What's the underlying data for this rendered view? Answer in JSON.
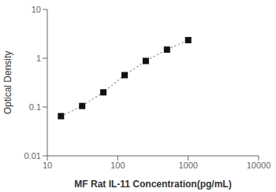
{
  "chart_data": {
    "type": "line",
    "log": true,
    "grid": false,
    "xlabel": "MF Rat IL-11 Concentration(pg/mL)",
    "ylabel": "Optical Density",
    "x": [
      15.625,
      31.25,
      62.5,
      125,
      250,
      500,
      1000
    ],
    "series": [
      {
        "type": "line",
        "color": "#999999",
        "line_style": "dotted",
        "values": [
          0.065,
          0.105,
          0.2,
          0.45,
          0.88,
          1.5,
          2.35
        ]
      },
      {
        "type": "scatter",
        "color": "#111111",
        "marker": "square",
        "values": [
          0.065,
          0.105,
          0.2,
          0.45,
          0.88,
          1.5,
          2.35
        ]
      }
    ],
    "xlim": [
      10,
      10000
    ],
    "ylim": [
      0.01,
      10
    ],
    "xticks": [
      10,
      100,
      1000,
      10000
    ],
    "yticks": [
      0.01,
      0.1,
      1,
      10
    ]
  }
}
